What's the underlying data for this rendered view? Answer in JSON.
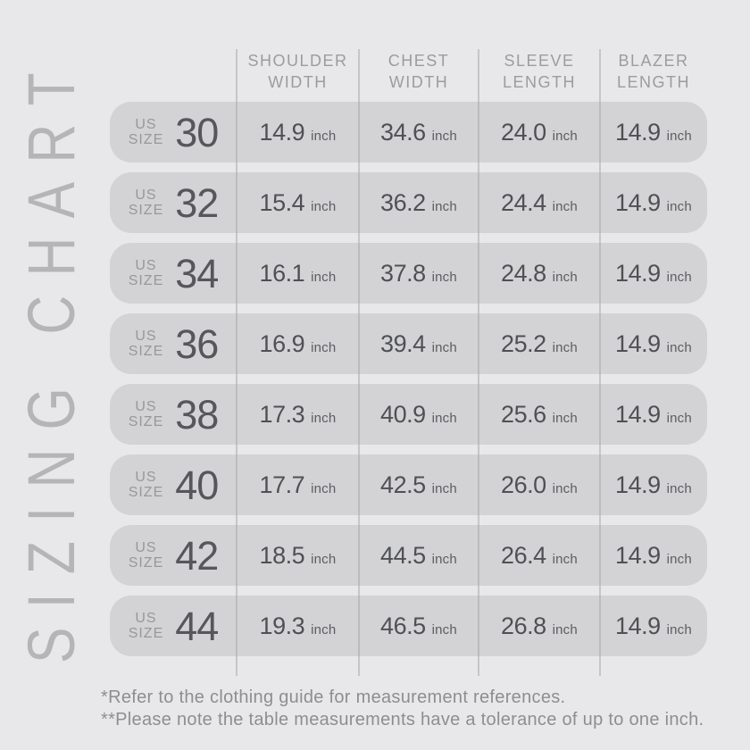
{
  "title": "SIZING CHART",
  "colors": {
    "background": "#e8e8ea",
    "row_pill": "#d3d3d5",
    "divider": "#a9a9ac",
    "header_text": "#9c9c9f",
    "size_label": "#98989b",
    "size_number": "#56565b",
    "value_text": "#4f5054",
    "unit_text": "#5c5d61",
    "vertical_title": "#b5b5b7",
    "footnote_text": "#8e8e91"
  },
  "table": {
    "size_label": {
      "line1": "US",
      "line2": "SIZE"
    },
    "unit": "inch",
    "columns": [
      {
        "line1": "SHOULDER",
        "line2": "WIDTH"
      },
      {
        "line1": "CHEST",
        "line2": "WIDTH"
      },
      {
        "line1": "SLEEVE",
        "line2": "LENGTH"
      },
      {
        "line1": "BLAZER",
        "line2": "LENGTH"
      }
    ],
    "rows": [
      {
        "size": "30",
        "values": [
          "14.9",
          "34.6",
          "24.0",
          "14.9"
        ]
      },
      {
        "size": "32",
        "values": [
          "15.4",
          "36.2",
          "24.4",
          "14.9"
        ]
      },
      {
        "size": "34",
        "values": [
          "16.1",
          "37.8",
          "24.8",
          "14.9"
        ]
      },
      {
        "size": "36",
        "values": [
          "16.9",
          "39.4",
          "25.2",
          "14.9"
        ]
      },
      {
        "size": "38",
        "values": [
          "17.3",
          "40.9",
          "25.6",
          "14.9"
        ]
      },
      {
        "size": "40",
        "values": [
          "17.7",
          "42.5",
          "26.0",
          "14.9"
        ]
      },
      {
        "size": "42",
        "values": [
          "18.5",
          "44.5",
          "26.4",
          "14.9"
        ]
      },
      {
        "size": "44",
        "values": [
          "19.3",
          "46.5",
          "26.8",
          "14.9"
        ]
      }
    ]
  },
  "footnotes": [
    "*Refer to the clothing guide for measurement references.",
    "**Please note the table measurements have a tolerance of up to one inch."
  ],
  "chart_data": {
    "type": "table",
    "title": "SIZING CHART",
    "columns": [
      "US SIZE",
      "SHOULDER WIDTH (inch)",
      "CHEST WIDTH (inch)",
      "SLEEVE LENGTH (inch)",
      "BLAZER LENGTH (inch)"
    ],
    "rows": [
      [
        30,
        14.9,
        34.6,
        24.0,
        14.9
      ],
      [
        32,
        15.4,
        36.2,
        24.4,
        14.9
      ],
      [
        34,
        16.1,
        37.8,
        24.8,
        14.9
      ],
      [
        36,
        16.9,
        39.4,
        25.2,
        14.9
      ],
      [
        38,
        17.3,
        40.9,
        25.6,
        14.9
      ],
      [
        40,
        17.7,
        42.5,
        26.0,
        14.9
      ],
      [
        42,
        18.5,
        44.5,
        26.4,
        14.9
      ],
      [
        44,
        19.3,
        46.5,
        26.8,
        14.9
      ]
    ],
    "notes": "All blazer lengths equal 14.9 inch; tolerance up to one inch."
  }
}
